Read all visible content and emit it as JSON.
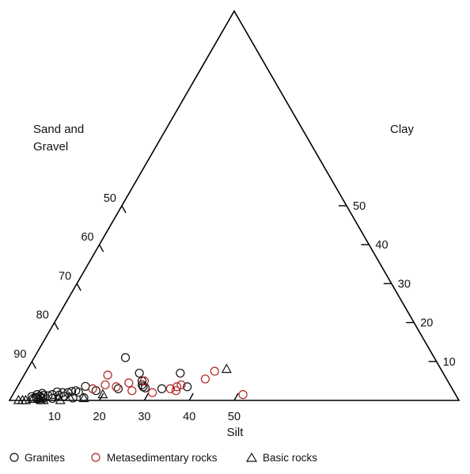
{
  "chart_data": {
    "type": "scatter",
    "subtype": "ternary",
    "title": "",
    "vertices": {
      "left": "Sand and Gravel",
      "apex": "Clay",
      "right": "Silt"
    },
    "axes": {
      "silt": {
        "label": "Silt",
        "ticks": [
          "10",
          "20",
          "30",
          "40",
          "50"
        ]
      },
      "clay": {
        "label": "Clay",
        "ticks": [
          "10",
          "20",
          "30",
          "40",
          "50"
        ]
      },
      "sand": {
        "label": "Sand and Gravel",
        "ticks": [
          "50",
          "60",
          "70",
          "80",
          "90"
        ]
      }
    },
    "legend": {
      "placement": "bottom",
      "entries": [
        "Granites",
        "Metasedimentary rocks",
        "Basic rocks"
      ]
    },
    "colors": {
      "granites": "#111111",
      "metasedimentary": "#b22222",
      "basic": "#111111",
      "frame": "#000000"
    },
    "series": [
      {
        "name": "Granites",
        "marker": "circle",
        "points": [
          {
            "silt": 4.5,
            "clay": 1.0
          },
          {
            "silt": 5.0,
            "clay": 0.5
          },
          {
            "silt": 5.4,
            "clay": 1.5
          },
          {
            "silt": 5.6,
            "clay": 0.8
          },
          {
            "silt": 5.9,
            "clay": 0.4
          },
          {
            "silt": 6.2,
            "clay": 1.1
          },
          {
            "silt": 6.4,
            "clay": 1.8
          },
          {
            "silt": 6.6,
            "clay": 0.7
          },
          {
            "silt": 6.9,
            "clay": 1.3
          },
          {
            "silt": 7.2,
            "clay": 0.5
          },
          {
            "silt": 8.0,
            "clay": 1.2
          },
          {
            "silt": 8.8,
            "clay": 1.5
          },
          {
            "silt": 9.3,
            "clay": 0.5
          },
          {
            "silt": 9.5,
            "clay": 2.2
          },
          {
            "silt": 10.3,
            "clay": 1.3
          },
          {
            "silt": 10.8,
            "clay": 2.0
          },
          {
            "silt": 11.6,
            "clay": 1.1
          },
          {
            "silt": 12.0,
            "clay": 2.0
          },
          {
            "silt": 12.7,
            "clay": 2.3
          },
          {
            "silt": 13.5,
            "clay": 2.5
          },
          {
            "silt": 13.8,
            "clay": 0.6
          },
          {
            "silt": 14.3,
            "clay": 2.1
          },
          {
            "silt": 15.1,
            "clay": 3.6
          },
          {
            "silt": 16.2,
            "clay": 0.7
          },
          {
            "silt": 18.0,
            "clay": 2.5
          },
          {
            "silt": 20.3,
            "clay": 11.0
          },
          {
            "silt": 22.7,
            "clay": 3.0
          },
          {
            "silt": 25.4,
            "clay": 7.0
          },
          {
            "silt": 27.0,
            "clay": 5.0
          },
          {
            "silt": 27.5,
            "clay": 4.0
          },
          {
            "silt": 28.0,
            "clay": 3.5
          },
          {
            "silt": 28.6,
            "clay": 3.2
          },
          {
            "silt": 32.4,
            "clay": 3.0
          },
          {
            "silt": 34.5,
            "clay": 7.0
          },
          {
            "silt": 37.8,
            "clay": 3.5
          }
        ]
      },
      {
        "name": "Metasedimentary rocks",
        "marker": "circle",
        "points": [
          {
            "silt": 17.0,
            "clay": 3.0
          },
          {
            "silt": 18.6,
            "clay": 6.5
          },
          {
            "silt": 19.3,
            "clay": 4.0
          },
          {
            "silt": 22.0,
            "clay": 3.5
          },
          {
            "silt": 24.3,
            "clay": 4.5
          },
          {
            "silt": 26.0,
            "clay": 2.5
          },
          {
            "silt": 27.5,
            "clay": 5.0
          },
          {
            "silt": 30.8,
            "clay": 2.0
          },
          {
            "silt": 34.3,
            "clay": 3.0
          },
          {
            "silt": 35.5,
            "clay": 3.5
          },
          {
            "silt": 35.8,
            "clay": 2.5
          },
          {
            "silt": 36.2,
            "clay": 4.0
          },
          {
            "silt": 40.8,
            "clay": 5.5
          },
          {
            "silt": 41.9,
            "clay": 7.5
          },
          {
            "silt": 51.2,
            "clay": 1.5
          }
        ]
      },
      {
        "name": "Basic rocks",
        "marker": "triangle",
        "points": [
          {
            "silt": 2.0,
            "clay": 0.0
          },
          {
            "silt": 2.9,
            "clay": 0.0
          },
          {
            "silt": 3.6,
            "clay": 0.0
          },
          {
            "silt": 5.0,
            "clay": 0.3
          },
          {
            "silt": 6.5,
            "clay": 0.4
          },
          {
            "silt": 7.0,
            "clay": 0.0
          },
          {
            "silt": 7.6,
            "clay": 0.0
          },
          {
            "silt": 11.3,
            "clay": 0.0
          },
          {
            "silt": 13.0,
            "clay": 0.8
          },
          {
            "silt": 16.3,
            "clay": 0.5
          },
          {
            "silt": 20.0,
            "clay": 1.5
          },
          {
            "silt": 44.3,
            "clay": 8.0
          }
        ]
      }
    ]
  }
}
